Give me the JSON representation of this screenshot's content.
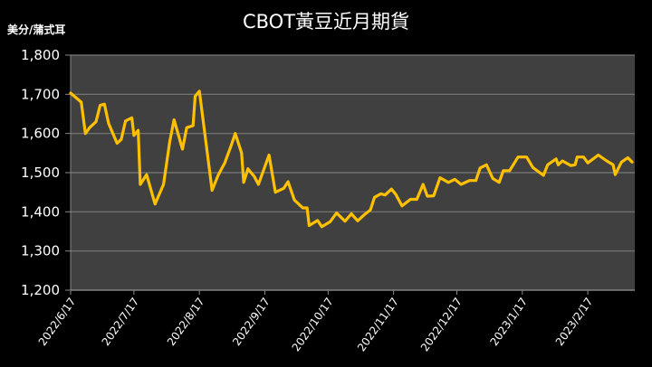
{
  "chart_data": {
    "type": "line",
    "title": "CBOT黃豆近月期貨",
    "ylabel": "美分/蒲式耳",
    "xlabel": "",
    "ylim": [
      1200,
      1800
    ],
    "yticks": [
      "1,200",
      "1,300",
      "1,400",
      "1,500",
      "1,600",
      "1,700",
      "1,800"
    ],
    "xticks": [
      "2022/6/17",
      "2022/7/17",
      "2022/8/17",
      "2022/9/17",
      "2022/10/17",
      "2022/11/17",
      "2022/12/17",
      "2023/1/17",
      "2023/2/17"
    ],
    "grid": true,
    "legend": "none",
    "line_color": "#FFC000",
    "plot_bg": "#404040",
    "series": [
      {
        "name": "CBOT黃豆近月期貨",
        "points": [
          [
            "2022/6/17",
            1703
          ],
          [
            "2022/6/22",
            1680
          ],
          [
            "2022/6/24",
            1600
          ],
          [
            "2022/6/26",
            1615
          ],
          [
            "2022/6/29",
            1630
          ],
          [
            "2022/7/1",
            1672
          ],
          [
            "2022/7/3",
            1675
          ],
          [
            "2022/7/5",
            1625
          ],
          [
            "2022/7/9",
            1575
          ],
          [
            "2022/7/11",
            1585
          ],
          [
            "2022/7/13",
            1632
          ],
          [
            "2022/7/16",
            1640
          ],
          [
            "2022/7/17",
            1595
          ],
          [
            "2022/7/19",
            1608
          ],
          [
            "2022/7/20",
            1470
          ],
          [
            "2022/7/23",
            1495
          ],
          [
            "2022/7/27",
            1420
          ],
          [
            "2022/7/31",
            1470
          ],
          [
            "2022/8/3",
            1580
          ],
          [
            "2022/8/5",
            1635
          ],
          [
            "2022/8/9",
            1560
          ],
          [
            "2022/8/11",
            1615
          ],
          [
            "2022/8/14",
            1620
          ],
          [
            "2022/8/15",
            1695
          ],
          [
            "2022/8/17",
            1708
          ],
          [
            "2022/8/23",
            1455
          ],
          [
            "2022/8/26",
            1495
          ],
          [
            "2022/8/29",
            1525
          ],
          [
            "2022/9/1",
            1568
          ],
          [
            "2022/9/3",
            1600
          ],
          [
            "2022/9/6",
            1550
          ],
          [
            "2022/9/7",
            1475
          ],
          [
            "2022/9/9",
            1510
          ],
          [
            "2022/9/12",
            1490
          ],
          [
            "2022/9/14",
            1470
          ],
          [
            "2022/9/19",
            1545
          ],
          [
            "2022/9/22",
            1450
          ],
          [
            "2022/9/26",
            1460
          ],
          [
            "2022/9/28",
            1477
          ],
          [
            "2022/10/1",
            1430
          ],
          [
            "2022/10/5",
            1410
          ],
          [
            "2022/10/7",
            1410
          ],
          [
            "2022/10/8",
            1365
          ],
          [
            "2022/10/12",
            1378
          ],
          [
            "2022/10/14",
            1362
          ],
          [
            "2022/10/18",
            1375
          ],
          [
            "2022/10/21",
            1397
          ],
          [
            "2022/10/25",
            1376
          ],
          [
            "2022/10/28",
            1395
          ],
          [
            "2022/10/31",
            1377
          ],
          [
            "2022/11/3",
            1392
          ],
          [
            "2022/11/6",
            1405
          ],
          [
            "2022/11/8",
            1437
          ],
          [
            "2022/11/11",
            1446
          ],
          [
            "2022/11/13",
            1443
          ],
          [
            "2022/11/16",
            1458
          ],
          [
            "2022/11/18",
            1445
          ],
          [
            "2022/11/21",
            1415
          ],
          [
            "2022/11/25",
            1432
          ],
          [
            "2022/11/28",
            1432
          ],
          [
            "2022/12/1",
            1470
          ],
          [
            "2022/12/3",
            1440
          ],
          [
            "2022/12/6",
            1441
          ],
          [
            "2022/12/9",
            1487
          ],
          [
            "2022/12/13",
            1475
          ],
          [
            "2022/12/16",
            1483
          ],
          [
            "2022/12/19",
            1470
          ],
          [
            "2022/12/23",
            1480
          ],
          [
            "2022/12/26",
            1480
          ],
          [
            "2022/12/28",
            1512
          ],
          [
            "2022/12/31",
            1520
          ],
          [
            "2023/1/3",
            1485
          ],
          [
            "2023/1/6",
            1475
          ],
          [
            "2023/1/8",
            1505
          ],
          [
            "2023/1/11",
            1505
          ],
          [
            "2023/1/15",
            1540
          ],
          [
            "2023/1/19",
            1540
          ],
          [
            "2023/1/22",
            1513
          ],
          [
            "2023/1/27",
            1493
          ],
          [
            "2023/1/29",
            1520
          ],
          [
            "2023/2/2",
            1535
          ],
          [
            "2023/2/3",
            1520
          ],
          [
            "2023/2/5",
            1530
          ],
          [
            "2023/2/9",
            1518
          ],
          [
            "2023/2/11",
            1520
          ],
          [
            "2023/2/12",
            1540
          ],
          [
            "2023/2/15",
            1540
          ],
          [
            "2023/2/17",
            1525
          ],
          [
            "2023/2/22",
            1545
          ],
          [
            "2023/2/26",
            1530
          ],
          [
            "2023/3/1",
            1520
          ],
          [
            "2023/3/2",
            1495
          ],
          [
            "2023/3/5",
            1527
          ],
          [
            "2023/3/8",
            1538
          ],
          [
            "2023/3/10",
            1527
          ]
        ]
      }
    ]
  }
}
